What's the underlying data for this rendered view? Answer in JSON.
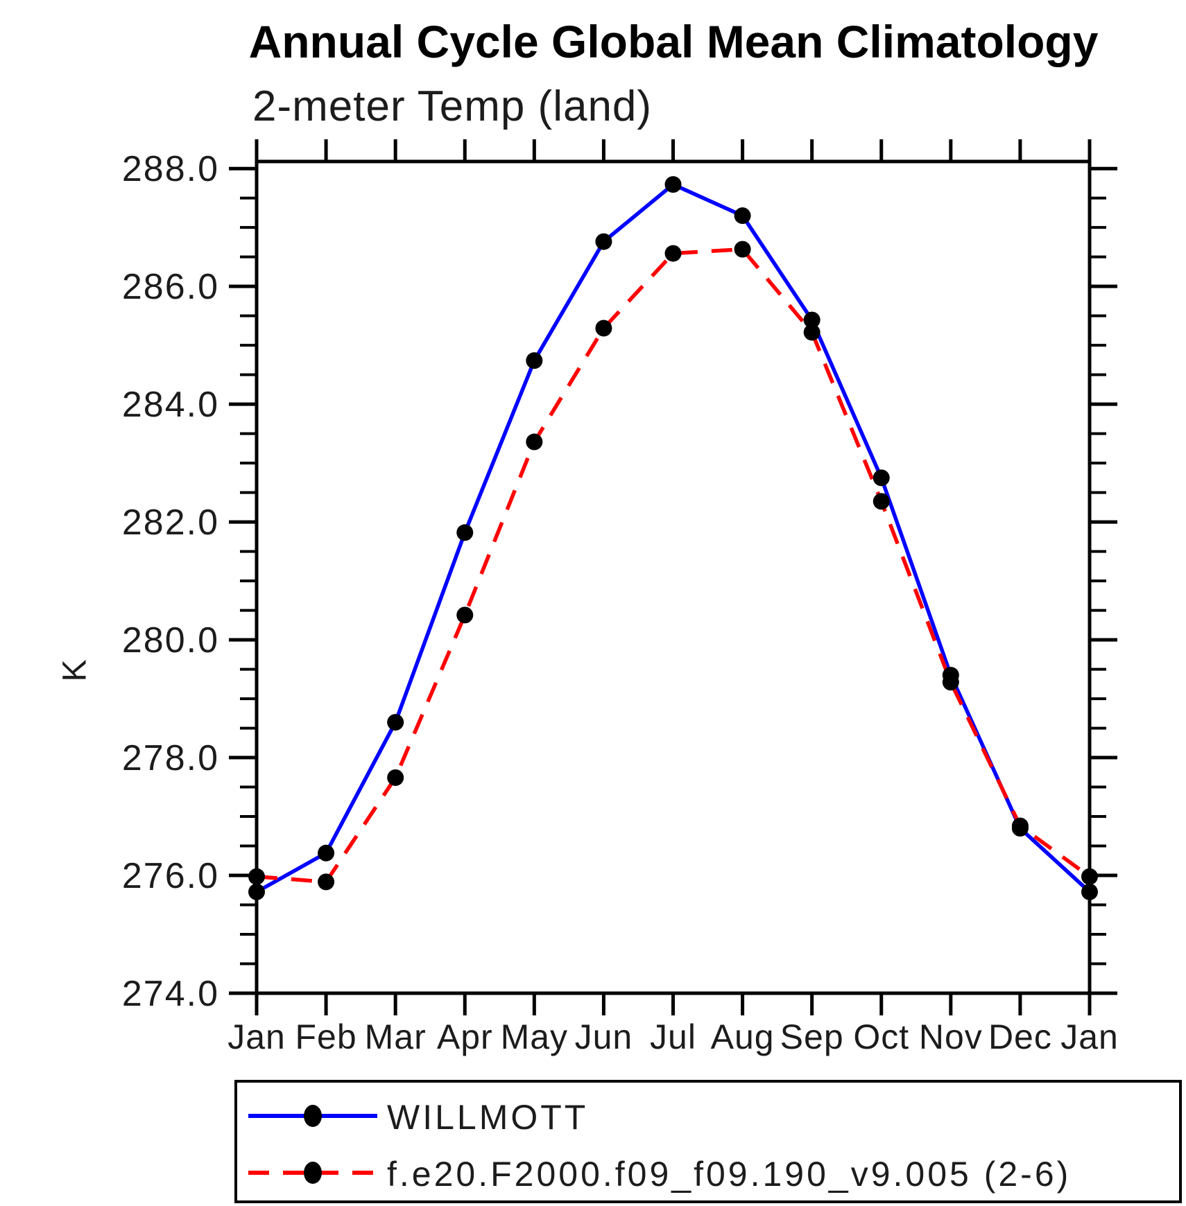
{
  "title": "Annual Cycle Global Mean Climatology",
  "subtitle": "2-meter Temp (land)",
  "ylabel": "K",
  "chart_data": {
    "type": "line",
    "title": "Annual Cycle Global Mean Climatology",
    "subtitle": "2-meter Temp (land)",
    "xlabel": "",
    "ylabel": "K",
    "categories": [
      "Jan",
      "Feb",
      "Mar",
      "Apr",
      "May",
      "Jun",
      "Jul",
      "Aug",
      "Sep",
      "Oct",
      "Nov",
      "Dec",
      "Jan"
    ],
    "series": [
      {
        "name": "WILLMOTT",
        "color": "#0000ff",
        "line_style": "solid",
        "marker": "filled-circle",
        "marker_color": "#000000",
        "values": [
          275.72,
          276.38,
          278.6,
          281.82,
          284.74,
          286.76,
          287.73,
          287.2,
          285.43,
          282.75,
          279.4,
          276.8,
          275.72
        ]
      },
      {
        "name": "f.e20.F2000.f09_f09.190_v9.005 (2-6)",
        "color": "#ff0000",
        "line_style": "dashed",
        "marker": "filled-circle",
        "marker_color": "#000000",
        "values": [
          275.98,
          275.89,
          277.66,
          280.42,
          283.36,
          285.29,
          286.56,
          286.63,
          285.22,
          282.35,
          279.28,
          276.84,
          275.98
        ]
      }
    ],
    "ylim": [
      274.0,
      288.12
    ],
    "yticks_major": [
      274,
      276,
      278,
      280,
      282,
      284,
      286,
      288
    ],
    "ytick_labels": [
      "274.0",
      "276.0",
      "278.0",
      "280.0",
      "282.0",
      "284.0",
      "286.0",
      "288.0"
    ],
    "yticks_minor_step": 0.5,
    "grid": false,
    "frame": "box",
    "tick_direction": "out",
    "legend_position": "bottom"
  },
  "colors": {
    "axis": "#000000",
    "marker": "#000000",
    "series_obs": "#0000ff",
    "series_model": "#ff0000"
  }
}
